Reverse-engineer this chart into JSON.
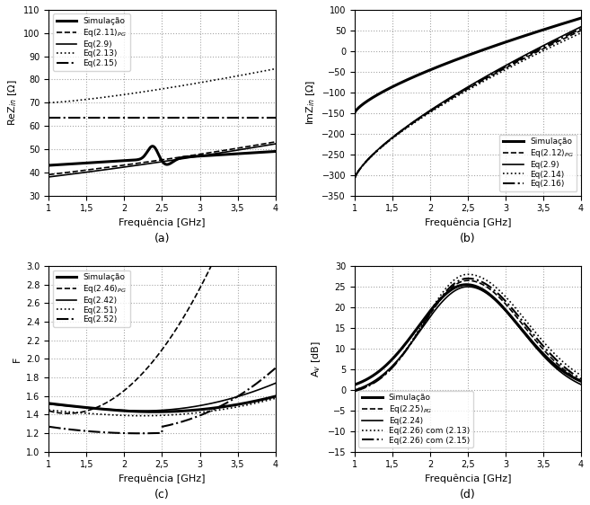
{
  "fig_width": 6.57,
  "fig_height": 5.62,
  "panel_a": {
    "ylabel": "ReZ$_{in}$ [$\\Omega$]",
    "xlabel": "Frequência [GHz]",
    "ylim": [
      30,
      110
    ],
    "yticks": [
      30,
      40,
      50,
      60,
      70,
      80,
      90,
      100,
      110
    ],
    "xticks": [
      1,
      1.5,
      2,
      2.5,
      3,
      3.5,
      4
    ],
    "xticklabels": [
      "1",
      "1,5",
      "2",
      "2,5",
      "3",
      "3,5",
      "4"
    ],
    "label": "(a)",
    "legend_labels": [
      "Simulação",
      "Eq(2.11)$_{PG}$",
      "Eq(2.9)",
      "Eq(2.13)",
      "Eq(2.15)"
    ],
    "legend_loc": "upper left"
  },
  "panel_b": {
    "ylabel": "ImZ$_{in}$ [$\\Omega$]",
    "xlabel": "Frequência [GHz]",
    "ylim": [
      -350,
      100
    ],
    "yticks": [
      -350,
      -300,
      -250,
      -200,
      -150,
      -100,
      -50,
      0,
      50,
      100
    ],
    "xticks": [
      1,
      1.5,
      2,
      2.5,
      3,
      3.5,
      4
    ],
    "xticklabels": [
      "1",
      "1,5",
      "2",
      "2,5",
      "3",
      "3,5",
      "4"
    ],
    "label": "(b)",
    "legend_labels": [
      "Simulação",
      "Eq(2.12)$_{PG}$",
      "Eq(2.9)",
      "Eq(2.14)",
      "Eq(2.16)"
    ],
    "legend_loc": "lower right"
  },
  "panel_c": {
    "ylabel": "F",
    "xlabel": "Frequência [GHz]",
    "ylim": [
      1,
      3
    ],
    "yticks": [
      1,
      1.2,
      1.4,
      1.6,
      1.8,
      2,
      2.2,
      2.4,
      2.6,
      2.8,
      3
    ],
    "xticks": [
      1,
      1.5,
      2,
      2.5,
      3,
      3.5,
      4
    ],
    "xticklabels": [
      "1",
      "1,5",
      "2",
      "2,5",
      "3",
      "3,5",
      "4"
    ],
    "label": "(c)",
    "legend_labels": [
      "Simulação",
      "Eq(2.46)$_{PG}$",
      "Eq(2.42)",
      "Eq(2.51)",
      "Eq(2.52)"
    ],
    "legend_loc": "upper left"
  },
  "panel_d": {
    "ylabel": "A$_v$ [dB]",
    "xlabel": "Frequência [GHz]",
    "ylim": [
      -15,
      30
    ],
    "yticks": [
      -15,
      -10,
      -5,
      0,
      5,
      10,
      15,
      20,
      25,
      30
    ],
    "xticks": [
      1,
      1.5,
      2,
      2.5,
      3,
      3.5,
      4
    ],
    "xticklabels": [
      "1",
      "1,5",
      "2",
      "2,5",
      "3",
      "3,5",
      "4"
    ],
    "label": "(d)",
    "legend_labels": [
      "Simulação",
      "Eq(2.25)$_{PG}$",
      "Eq(2.24)",
      "Eq(2.26) com (2.13)",
      "Eq(2.26) com (2.15)"
    ],
    "legend_loc": "lower left"
  }
}
